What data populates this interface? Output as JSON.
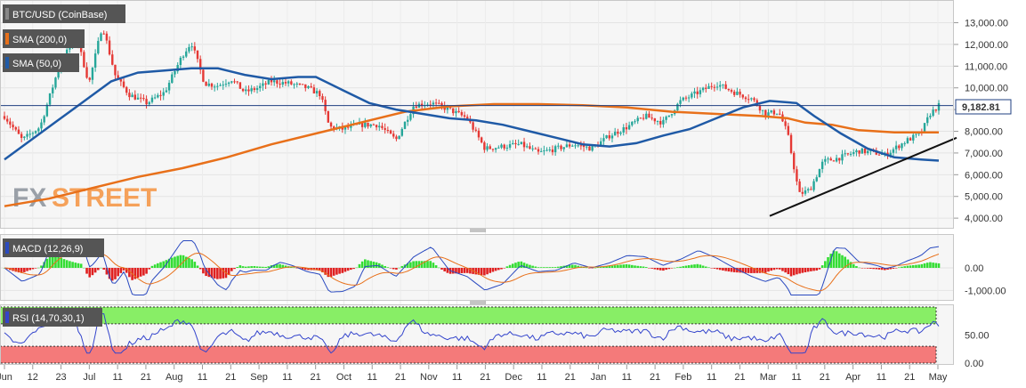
{
  "chart_data": [
    {
      "type": "candlestick",
      "title": "BTC/USD (CoinBase)",
      "x_ticks": [
        "Jun",
        "12",
        "23",
        "Jul",
        "11",
        "21",
        "Aug",
        "11",
        "21",
        "Sep",
        "11",
        "21",
        "Oct",
        "11",
        "21",
        "Nov",
        "11",
        "21",
        "Dec",
        "11",
        "21",
        "Jan",
        "11",
        "21",
        "Feb",
        "11",
        "21",
        "Mar",
        "11",
        "21",
        "Apr",
        "11",
        "21",
        "May"
      ],
      "y_ticks": [
        "4,000.00",
        "5,000.00",
        "6,000.00",
        "7,000.00",
        "8,000.00",
        "9,000.00",
        "10,000.00",
        "11,000.00",
        "12,000.00",
        "13,000.00"
      ],
      "ylim": [
        3800,
        13800
      ],
      "last_price": "9,182.81",
      "close_path": [
        [
          0,
          8700
        ],
        [
          0.02,
          7600
        ],
        [
          0.04,
          8200
        ],
        [
          0.06,
          10800
        ],
        [
          0.08,
          12500
        ],
        [
          0.095,
          10200
        ],
        [
          0.11,
          12900
        ],
        [
          0.125,
          10500
        ],
        [
          0.14,
          9700
        ],
        [
          0.16,
          9300
        ],
        [
          0.18,
          9800
        ],
        [
          0.2,
          11500
        ],
        [
          0.21,
          12100
        ],
        [
          0.225,
          10200
        ],
        [
          0.24,
          10100
        ],
        [
          0.255,
          10400
        ],
        [
          0.27,
          9800
        ],
        [
          0.285,
          10000
        ],
        [
          0.3,
          10300
        ],
        [
          0.32,
          10200
        ],
        [
          0.34,
          10000
        ],
        [
          0.355,
          9700
        ],
        [
          0.365,
          8200
        ],
        [
          0.38,
          8100
        ],
        [
          0.4,
          8300
        ],
        [
          0.42,
          8300
        ],
        [
          0.44,
          7600
        ],
        [
          0.46,
          9200
        ],
        [
          0.48,
          9300
        ],
        [
          0.5,
          9000
        ],
        [
          0.52,
          8600
        ],
        [
          0.54,
          7200
        ],
        [
          0.56,
          7300
        ],
        [
          0.58,
          7400
        ],
        [
          0.6,
          7000
        ],
        [
          0.62,
          7200
        ],
        [
          0.64,
          7400
        ],
        [
          0.66,
          7200
        ],
        [
          0.68,
          7800
        ],
        [
          0.7,
          8200
        ],
        [
          0.72,
          8700
        ],
        [
          0.74,
          8400
        ],
        [
          0.76,
          9400
        ],
        [
          0.78,
          9800
        ],
        [
          0.8,
          10200
        ],
        [
          0.82,
          9800
        ],
        [
          0.84,
          9500
        ],
        [
          0.855,
          8800
        ],
        [
          0.87,
          8900
        ],
        [
          0.88,
          7900
        ],
        [
          0.893,
          5100
        ],
        [
          0.905,
          5300
        ],
        [
          0.92,
          6600
        ],
        [
          0.94,
          6800
        ],
        [
          0.96,
          7100
        ],
        [
          0.98,
          7000
        ],
        [
          0.99,
          6900
        ],
        [
          1.0,
          7200
        ],
        [
          1.015,
          7600
        ],
        [
          1.03,
          7900
        ],
        [
          1.04,
          8800
        ],
        [
          1.05,
          9180
        ]
      ],
      "sma200_path": [
        [
          0,
          4550
        ],
        [
          0.05,
          4900
        ],
        [
          0.1,
          5400
        ],
        [
          0.15,
          5900
        ],
        [
          0.2,
          6300
        ],
        [
          0.25,
          6800
        ],
        [
          0.3,
          7400
        ],
        [
          0.35,
          7900
        ],
        [
          0.4,
          8400
        ],
        [
          0.45,
          8900
        ],
        [
          0.5,
          9150
        ],
        [
          0.55,
          9250
        ],
        [
          0.6,
          9250
        ],
        [
          0.65,
          9200
        ],
        [
          0.7,
          9100
        ],
        [
          0.75,
          8900
        ],
        [
          0.8,
          8800
        ],
        [
          0.85,
          8700
        ],
        [
          0.88,
          8600
        ],
        [
          0.9,
          8400
        ],
        [
          0.93,
          8300
        ],
        [
          0.96,
          8050
        ],
        [
          1.0,
          7950
        ],
        [
          1.05,
          7950
        ]
      ],
      "sma50_path": [
        [
          0,
          6700
        ],
        [
          0.03,
          7600
        ],
        [
          0.06,
          8500
        ],
        [
          0.09,
          9400
        ],
        [
          0.12,
          10300
        ],
        [
          0.15,
          10700
        ],
        [
          0.18,
          10800
        ],
        [
          0.21,
          10900
        ],
        [
          0.24,
          10900
        ],
        [
          0.27,
          10600
        ],
        [
          0.3,
          10400
        ],
        [
          0.33,
          10500
        ],
        [
          0.35,
          10500
        ],
        [
          0.38,
          9900
        ],
        [
          0.41,
          9300
        ],
        [
          0.44,
          9000
        ],
        [
          0.47,
          8800
        ],
        [
          0.5,
          8600
        ],
        [
          0.53,
          8500
        ],
        [
          0.56,
          8300
        ],
        [
          0.59,
          8000
        ],
        [
          0.62,
          7700
        ],
        [
          0.65,
          7400
        ],
        [
          0.68,
          7300
        ],
        [
          0.71,
          7450
        ],
        [
          0.74,
          7800
        ],
        [
          0.77,
          8100
        ],
        [
          0.8,
          8600
        ],
        [
          0.83,
          9100
        ],
        [
          0.86,
          9400
        ],
        [
          0.89,
          9300
        ],
        [
          0.91,
          8700
        ],
        [
          0.94,
          7900
        ],
        [
          0.97,
          7200
        ],
        [
          1.0,
          6800
        ],
        [
          1.03,
          6700
        ],
        [
          1.05,
          6650
        ]
      ],
      "trendline": [
        [
          0.86,
          4100
        ],
        [
          1.07,
          7700
        ]
      ]
    },
    {
      "type": "macd",
      "title": "MACD (12,26,9)",
      "y_ticks": [
        "0.00",
        "-1,000.00"
      ],
      "ylim": [
        -1300,
        1300
      ]
    },
    {
      "type": "rsi",
      "title": "RSI (14,70,30,1)",
      "y_ticks": [
        "50.00",
        "0.00"
      ],
      "ylim": [
        0,
        100
      ]
    }
  ],
  "watermark": {
    "fx": "FX",
    "street": "STREET"
  },
  "sma200_label": "SMA (200,0)",
  "sma50_label": "SMA (50,0)",
  "colors": {
    "candle_up": "#26a69a",
    "candle_down": "#e53935",
    "sma200": "#e8701a",
    "sma50": "#1f5aa6",
    "macd_pos": "#33dd33",
    "macd_neg": "#e02020",
    "rsi_line": "#3344cc",
    "overbought": "#88ee66",
    "oversold": "#f47a7a"
  }
}
